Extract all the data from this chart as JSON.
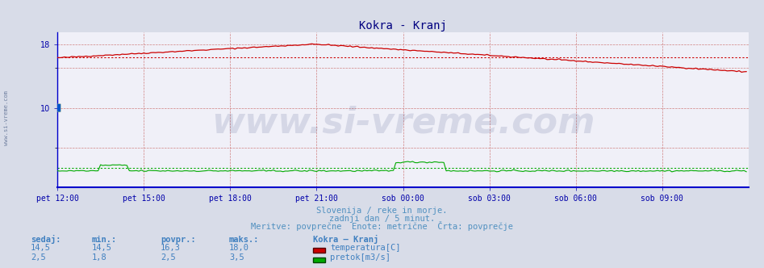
{
  "title": "Kokra - Kranj",
  "title_color": "#000080",
  "bg_color": "#d8dce8",
  "plot_bg_color": "#f0f0f8",
  "grid_color_v": "#d08080",
  "grid_color_h": "#d08080",
  "x_tick_labels": [
    "pet 12:00",
    "pet 15:00",
    "pet 18:00",
    "pet 21:00",
    "sob 00:00",
    "sob 03:00",
    "sob 06:00",
    "sob 09:00"
  ],
  "x_tick_positions": [
    0,
    36,
    72,
    108,
    144,
    180,
    216,
    252
  ],
  "ylim": [
    0,
    19.5
  ],
  "xlim": [
    0,
    288
  ],
  "n_points": 288,
  "temp_color": "#cc0000",
  "flow_color": "#00aa00",
  "avg_temp": 16.3,
  "avg_flow": 2.5,
  "watermark": "www.si-vreme.com",
  "watermark_color": "#1a2a6a",
  "watermark_alpha": 0.12,
  "subtitle1": "Slovenija / reke in morje.",
  "subtitle2": "zadnji dan / 5 minut.",
  "subtitle3": "Meritve: povprečne  Enote: metrične  Črta: povprečje",
  "subtitle_color": "#5090c0",
  "legend_title": "Kokra – Kranj",
  "label_temp": "temperatura[C]",
  "label_flow": "pretok[m3/s]",
  "stat_headers": [
    "sedaj:",
    "min.:",
    "povpr.:",
    "maks.:"
  ],
  "stat_temp": [
    "14,5",
    "14,5",
    "16,3",
    "18,0"
  ],
  "stat_flow": [
    "2,5",
    "1,8",
    "2,5",
    "3,5"
  ],
  "stat_color": "#4080c0",
  "axis_color": "#0000cc",
  "tick_color": "#0000aa",
  "left_label": "www.si-vreme.com",
  "left_label_color": "#7080a0",
  "bottom_bar_color": "#0000cc",
  "temp_avg_color": "#cc0000",
  "flow_avg_color": "#00aa00"
}
